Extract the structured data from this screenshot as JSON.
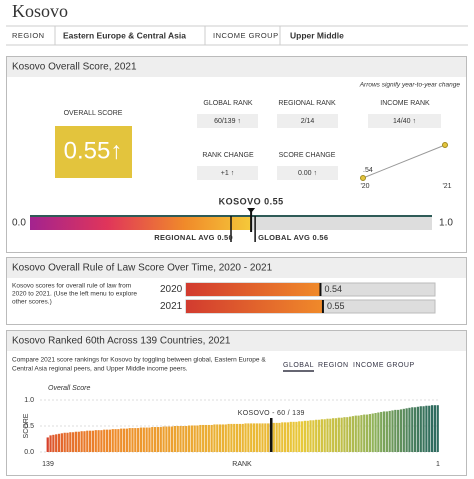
{
  "header": {
    "title": "Kosovo",
    "region_label": "REGION",
    "region": "Eastern Europe & Central Asia",
    "income_label": "INCOME GROUP",
    "income": "Upper Middle"
  },
  "overall": {
    "title": "Kosovo Overall Score, 2021",
    "note": "Arrows signify year-to-year change",
    "score_label": "OVERALL SCORE",
    "score": "0.55↑",
    "stats": [
      {
        "label": "GLOBAL RANK",
        "value": "60/139 ↑"
      },
      {
        "label": "REGIONAL RANK",
        "value": "2/14"
      },
      {
        "label": "INCOME RANK",
        "value": "14/40 ↑"
      },
      {
        "label": "RANK CHANGE",
        "value": "+1 ↑"
      },
      {
        "label": "SCORE CHANGE",
        "value": "0.00 ↑"
      }
    ],
    "trend": {
      "categories": [
        "'20",
        "'21"
      ],
      "values": [
        0.54,
        0.55
      ],
      "value_labels": [
        ".54",
        null
      ],
      "color": "#e3c43d"
    },
    "scale": {
      "xlim": [
        0,
        1
      ],
      "xticks": [
        {
          "value": 0,
          "label": "0.0"
        },
        {
          "value": 1,
          "label": "1.0"
        }
      ],
      "markers": [
        {
          "label": "KOSOVO 0.55",
          "value": 0.55
        },
        {
          "label": "REGIONAL AVG 0.50",
          "value": 0.5
        },
        {
          "label": "GLOBAL AVG 0.56",
          "value": 0.56
        }
      ]
    }
  },
  "history": {
    "title": "Kosovo Overall Rule of Law Score Over Time, 2020 - 2021",
    "description": [
      "Kosovo scores for overall rule of law from",
      "2020 to 2021. (Use the left menu to explore",
      "other scores.)"
    ],
    "categories": [
      "2020",
      "2021"
    ],
    "values": [
      0.54,
      0.55
    ],
    "xlim": [
      0,
      1
    ]
  },
  "ranking": {
    "title": "Kosovo Ranked 60th Across 139 Countries, 2021",
    "description": [
      "Compare 2021 score rankings for Kosovo by toggling between global, Eastern Europe &",
      "Central Asia regional peers, and Upper Middle income peers."
    ],
    "tabs": [
      "GLOBAL",
      "REGION",
      "INCOME GROUP"
    ],
    "ylabel": "Overall Score",
    "yaxis_title": "SCORE",
    "xaxis_title": "RANK",
    "ylim": [
      0,
      1
    ],
    "yticks": [
      {
        "value": 1,
        "label": "1.0"
      },
      {
        "value": 0.5,
        "label": "0.5"
      },
      {
        "value": 0,
        "label": "0.0"
      }
    ],
    "xlim": [
      139,
      1
    ],
    "xticks": [
      139,
      1
    ],
    "annotation": {
      "label": "KOSOVO - 60 / 139",
      "x": 60
    },
    "colors": [
      "#d7402b",
      "#ee8a2b",
      "#e8c93a",
      "#8fb25a",
      "#2e6b5e"
    ],
    "values": [
      0.28,
      0.32,
      0.33,
      0.34,
      0.35,
      0.36,
      0.37,
      0.37,
      0.38,
      0.38,
      0.39,
      0.39,
      0.4,
      0.4,
      0.41,
      0.41,
      0.41,
      0.42,
      0.42,
      0.42,
      0.43,
      0.43,
      0.43,
      0.44,
      0.44,
      0.44,
      0.45,
      0.45,
      0.45,
      0.46,
      0.46,
      0.46,
      0.46,
      0.47,
      0.47,
      0.47,
      0.47,
      0.48,
      0.48,
      0.48,
      0.48,
      0.49,
      0.49,
      0.49,
      0.49,
      0.5,
      0.5,
      0.5,
      0.5,
      0.5,
      0.51,
      0.51,
      0.51,
      0.51,
      0.52,
      0.52,
      0.52,
      0.52,
      0.52,
      0.53,
      0.53,
      0.53,
      0.53,
      0.53,
      0.54,
      0.54,
      0.54,
      0.54,
      0.54,
      0.54,
      0.55,
      0.55,
      0.55,
      0.55,
      0.55,
      0.55,
      0.55,
      0.55,
      0.55,
      0.55,
      0.56,
      0.56,
      0.56,
      0.57,
      0.57,
      0.57,
      0.58,
      0.58,
      0.58,
      0.59,
      0.59,
      0.6,
      0.6,
      0.61,
      0.61,
      0.62,
      0.62,
      0.63,
      0.63,
      0.64,
      0.64,
      0.65,
      0.65,
      0.66,
      0.66,
      0.67,
      0.67,
      0.68,
      0.69,
      0.7,
      0.7,
      0.71,
      0.72,
      0.72,
      0.73,
      0.74,
      0.75,
      0.76,
      0.77,
      0.78,
      0.78,
      0.79,
      0.8,
      0.81,
      0.81,
      0.82,
      0.83,
      0.84,
      0.85,
      0.86,
      0.86,
      0.87,
      0.88,
      0.88,
      0.89,
      0.89,
      0.9,
      0.9,
      0.9
    ]
  }
}
